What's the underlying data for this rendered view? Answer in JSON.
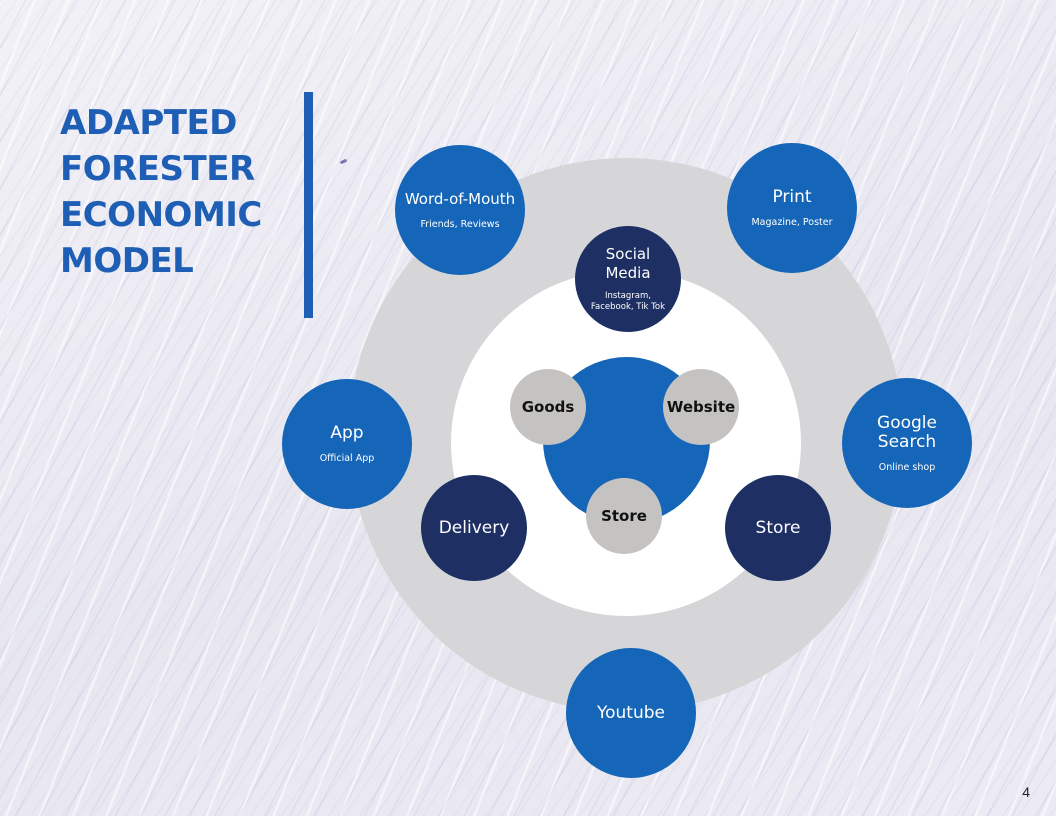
{
  "title": {
    "lines": [
      "ADAPTED",
      "FORESTER",
      "ECONOMIC",
      "MODEL"
    ],
    "color": "#1e5fb5"
  },
  "colors": {
    "blue": "#1566b8",
    "navy": "#1e2f64",
    "grey_node": "#c4c3c1",
    "outer_ring": "#d6d6d8",
    "inner_ring": "#ffffff"
  },
  "diagram": {
    "outer_nodes": [
      {
        "label": "Word-of-Mouth",
        "sub": "Friends, Reviews"
      },
      {
        "label": "Print",
        "sub": "Magazine, Poster"
      },
      {
        "label": "App",
        "sub": "Official App"
      },
      {
        "label": "Google Search",
        "sub": "Online shop"
      },
      {
        "label": "Youtube",
        "sub": ""
      }
    ],
    "inner_nodes": [
      {
        "label": "Social Media",
        "sub": "Instagram, Facebook, Tik Tok"
      },
      {
        "label": "Delivery",
        "sub": ""
      },
      {
        "label": "Store",
        "sub": ""
      }
    ],
    "core_nodes": [
      {
        "label": "Goods"
      },
      {
        "label": "Website"
      },
      {
        "label": "Store"
      }
    ]
  },
  "page_number": "4"
}
